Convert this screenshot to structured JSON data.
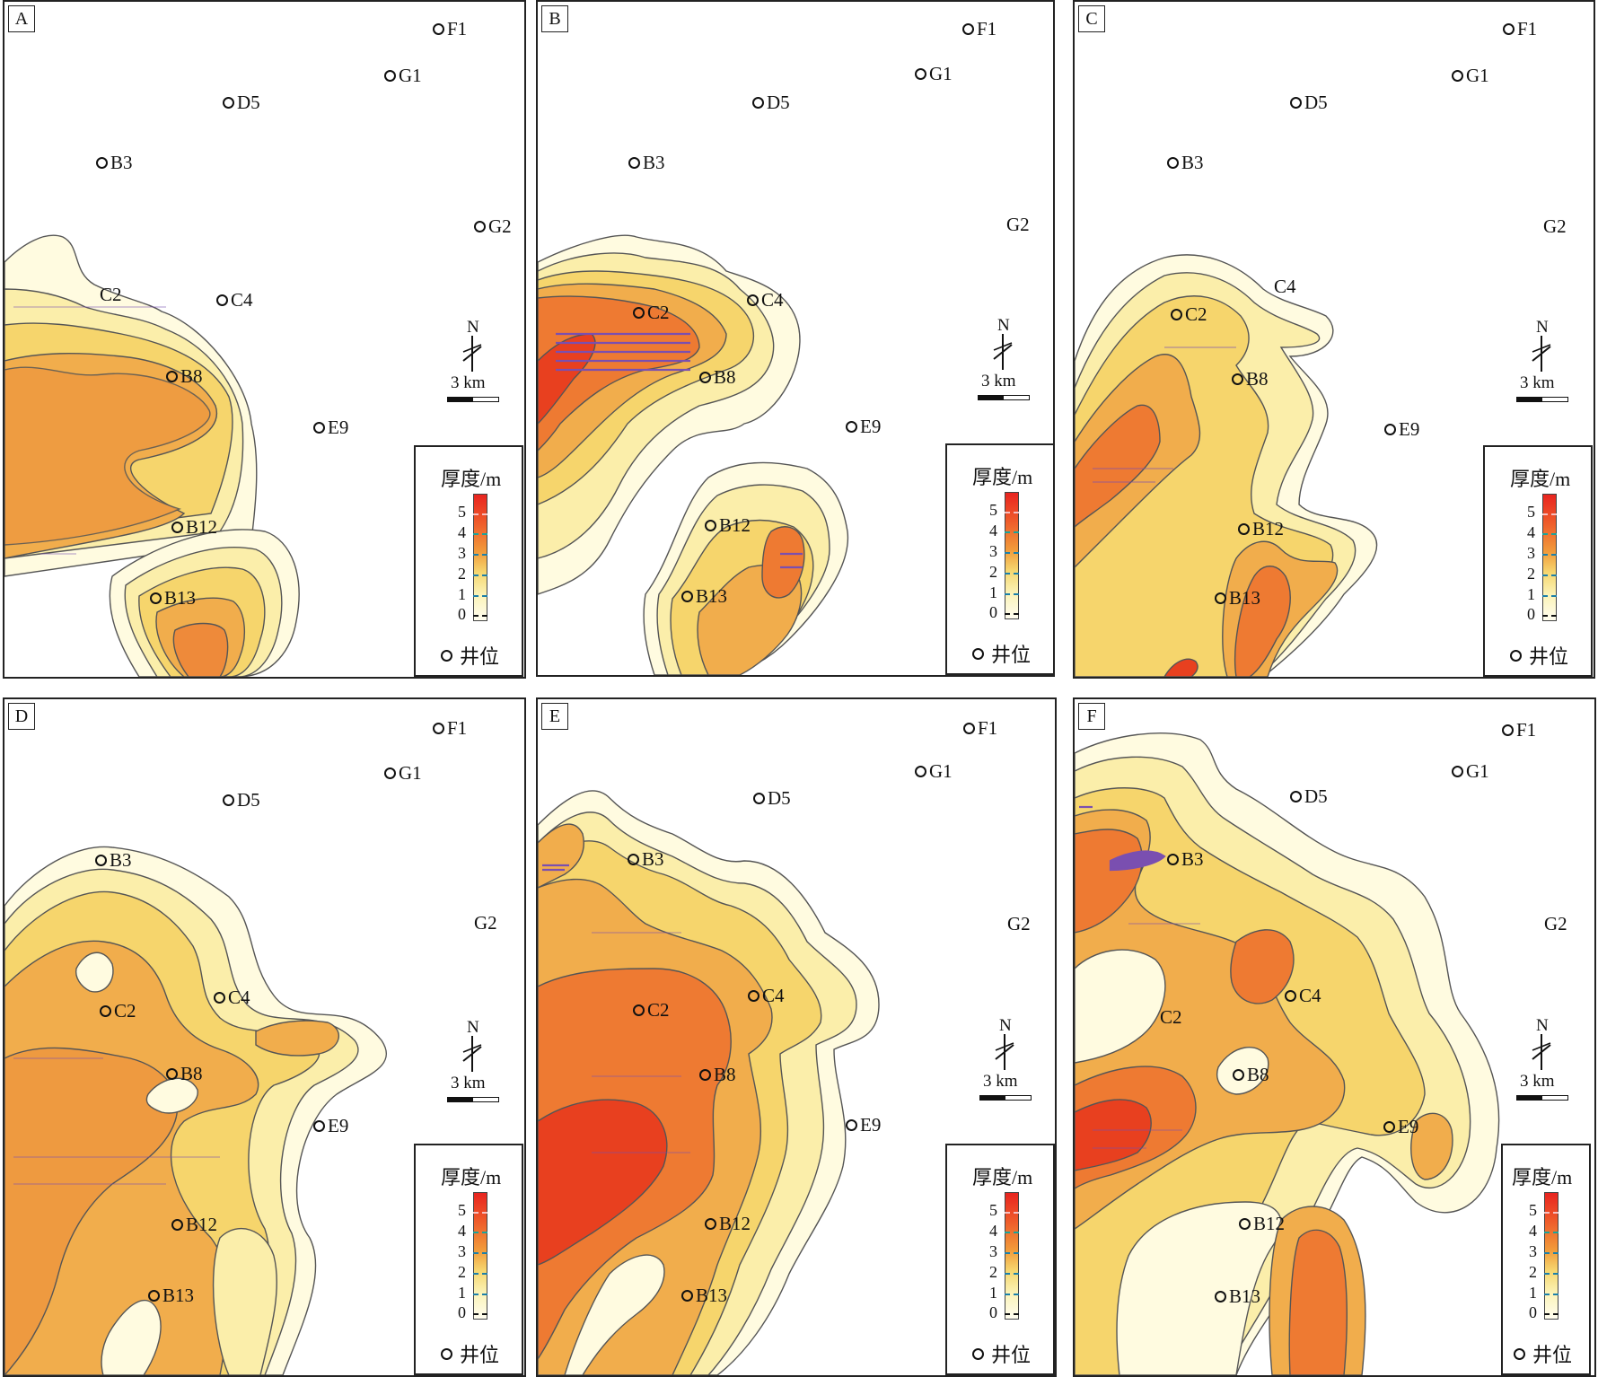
{
  "legend": {
    "title": "厚度/m",
    "ticks": [
      "5",
      "4",
      "3",
      "2",
      "1",
      "0"
    ],
    "well_label": "井位"
  },
  "scale": {
    "north_label": "N",
    "scale_text": "3 km"
  },
  "colors": {
    "level1": "#fffbe0",
    "level2": "#fbeeaa",
    "level3": "#f6d56c",
    "level4": "#f1ad4c",
    "level5": "#ee7a32",
    "level6": "#e8401f",
    "thin": "#7a4fb0"
  },
  "panels": [
    {
      "label": "A",
      "wells": [
        {
          "name": "F1"
        },
        {
          "name": "G1"
        },
        {
          "name": "D5"
        },
        {
          "name": "B3"
        },
        {
          "name": "G2"
        },
        {
          "name": "C2"
        },
        {
          "name": "C4"
        },
        {
          "name": "B8"
        },
        {
          "name": "E9"
        },
        {
          "name": "B12"
        },
        {
          "name": "B13"
        }
      ]
    },
    {
      "label": "B",
      "wells": [
        {
          "name": "F1"
        },
        {
          "name": "G1"
        },
        {
          "name": "D5"
        },
        {
          "name": "B3"
        },
        {
          "name": "G2"
        },
        {
          "name": "C2"
        },
        {
          "name": "C4"
        },
        {
          "name": "B8"
        },
        {
          "name": "E9"
        },
        {
          "name": "B12"
        },
        {
          "name": "B13"
        }
      ]
    },
    {
      "label": "C",
      "wells": [
        {
          "name": "F1"
        },
        {
          "name": "G1"
        },
        {
          "name": "D5"
        },
        {
          "name": "B3"
        },
        {
          "name": "G2"
        },
        {
          "name": "C4"
        },
        {
          "name": "C2"
        },
        {
          "name": "B8"
        },
        {
          "name": "E9"
        },
        {
          "name": "B12"
        },
        {
          "name": "B13"
        }
      ]
    },
    {
      "label": "D",
      "wells": [
        {
          "name": "F1"
        },
        {
          "name": "G1"
        },
        {
          "name": "D5"
        },
        {
          "name": "B3"
        },
        {
          "name": "G2"
        },
        {
          "name": "C2"
        },
        {
          "name": "C4"
        },
        {
          "name": "B8"
        },
        {
          "name": "E9"
        },
        {
          "name": "B12"
        },
        {
          "name": "B13"
        }
      ]
    },
    {
      "label": "E",
      "wells": [
        {
          "name": "F1"
        },
        {
          "name": "G1"
        },
        {
          "name": "D5"
        },
        {
          "name": "B3"
        },
        {
          "name": "G2"
        },
        {
          "name": "C2"
        },
        {
          "name": "C4"
        },
        {
          "name": "B8"
        },
        {
          "name": "E9"
        },
        {
          "name": "B12"
        },
        {
          "name": "B13"
        }
      ]
    },
    {
      "label": "F",
      "wells": [
        {
          "name": "F1"
        },
        {
          "name": "G1"
        },
        {
          "name": "D5"
        },
        {
          "name": "B3"
        },
        {
          "name": "G2"
        },
        {
          "name": "C4"
        },
        {
          "name": "C2"
        },
        {
          "name": "B8"
        },
        {
          "name": "E9"
        },
        {
          "name": "B12"
        },
        {
          "name": "B13"
        }
      ]
    }
  ]
}
